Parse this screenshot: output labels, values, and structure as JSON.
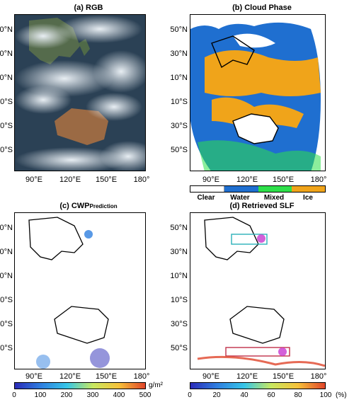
{
  "panels": {
    "a": {
      "title": "(a) RGB"
    },
    "b": {
      "title": "(b) Cloud Phase"
    },
    "c": {
      "title_main": "(c) CWP",
      "title_sub": "Prediction"
    },
    "d": {
      "title": "(d) Retrieved SLF"
    }
  },
  "axes": {
    "lat_labels": [
      "50°N",
      "30°N",
      "10°N",
      "10°S",
      "30°S",
      "50°S"
    ],
    "lon_labels": [
      "90°E",
      "120°E",
      "150°E",
      "180°"
    ]
  },
  "phase_legend": {
    "categories": [
      "Clear",
      "Water",
      "Mixed",
      "Ice"
    ],
    "colors": [
      "#ffffff",
      "#1f6fd0",
      "#2ee04a",
      "#f0a41a"
    ]
  },
  "cwp_colorbar": {
    "ticks": [
      "0",
      "100",
      "200",
      "300",
      "400",
      "500"
    ],
    "unit": "g/m²",
    "colors": [
      "#2b2bb8",
      "#2f7fe0",
      "#36c6e8",
      "#c8e860",
      "#f7c13a",
      "#e0452a"
    ]
  },
  "slf_colorbar": {
    "ticks": [
      "0",
      "20",
      "40",
      "60",
      "80",
      "100"
    ],
    "unit": "(%)",
    "colors": [
      "#2b2bb8",
      "#2f7fe0",
      "#36c6e8",
      "#c8e860",
      "#f7c13a",
      "#e0452a"
    ]
  }
}
